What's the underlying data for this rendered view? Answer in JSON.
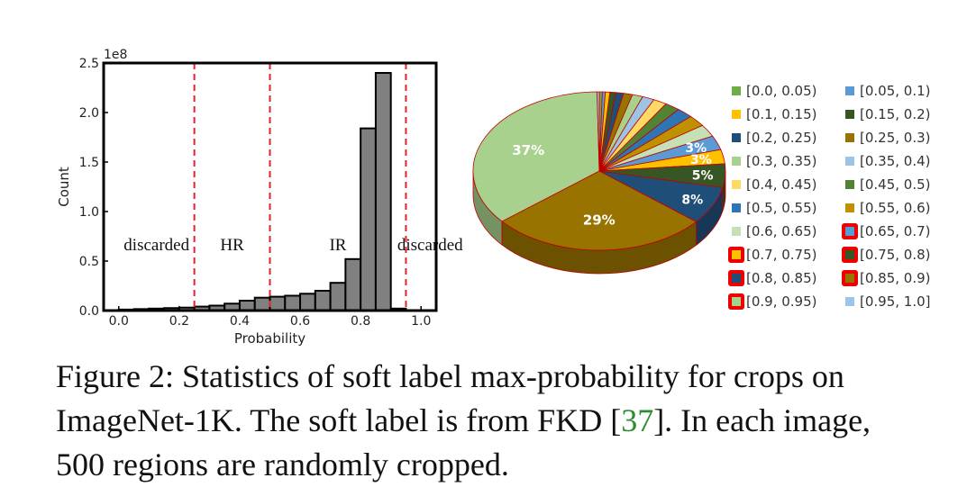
{
  "chart_data": [
    {
      "type": "bar",
      "xlabel": "Probability",
      "ylabel": "Count",
      "y_scale_label": "1e8",
      "xlim": [
        -0.05,
        1.05
      ],
      "ylim": [
        0,
        2.5
      ],
      "x_ticks": [
        "0.0",
        "0.2",
        "0.4",
        "0.6",
        "0.8",
        "1.0"
      ],
      "y_ticks": [
        "0.0",
        "0.5",
        "1.0",
        "1.5",
        "2.0",
        "2.5"
      ],
      "bin_width": 0.05,
      "bin_starts": [
        0.0,
        0.05,
        0.1,
        0.15,
        0.2,
        0.25,
        0.3,
        0.35,
        0.4,
        0.45,
        0.5,
        0.55,
        0.6,
        0.65,
        0.7,
        0.75,
        0.8,
        0.85,
        0.9,
        0.95
      ],
      "values": [
        0.01,
        0.015,
        0.02,
        0.025,
        0.03,
        0.04,
        0.05,
        0.07,
        0.1,
        0.13,
        0.14,
        0.15,
        0.17,
        0.2,
        0.28,
        0.52,
        1.84,
        2.4,
        0.02,
        0.0
      ],
      "bar_color": "#808080",
      "threshold_lines": [
        0.25,
        0.5,
        0.95
      ],
      "threshold_color": "#e8222a",
      "region_labels": [
        {
          "text": "discarded",
          "x": 0.125
        },
        {
          "text": "HR",
          "x": 0.375
        },
        {
          "text": "IR",
          "x": 0.725
        },
        {
          "text": "discarded",
          "x": 1.03
        }
      ],
      "grid": false
    },
    {
      "type": "pie",
      "style": "3d",
      "labels": [
        "[0.0, 0.05)",
        "[0.05, 0.1)",
        "[0.1, 0.15)",
        "[0.15, 0.2)",
        "[0.2, 0.25)",
        "[0.25, 0.3)",
        "[0.3, 0.35)",
        "[0.35, 0.4)",
        "[0.4, 0.45)",
        "[0.45, 0.5)",
        "[0.5, 0.55)",
        "[0.55, 0.6)",
        "[0.6, 0.65)",
        "[0.65, 0.7)",
        "[0.7, 0.75)",
        "[0.75, 0.8)",
        "[0.8, 0.85)",
        "[0.85, 0.9)",
        "[0.9, 0.95)",
        "[0.95, 1.0]"
      ],
      "colors": [
        "#70ad47",
        "#5b9bd5",
        "#ffc000",
        "#375623",
        "#1f4e79",
        "#997300",
        "#a9d18e",
        "#9dc3e6",
        "#ffd966",
        "#548235",
        "#2e75b6",
        "#bf9000",
        "#c5e0b4",
        "#5b9bd5",
        "#ffc000",
        "#375623",
        "#1f4e79",
        "#997300",
        "#a9d18e",
        "#9dc3e6"
      ],
      "boxed_legend": [
        false,
        false,
        false,
        false,
        false,
        false,
        false,
        false,
        false,
        false,
        false,
        false,
        false,
        true,
        true,
        true,
        true,
        true,
        true,
        false
      ],
      "pie_order": [
        0,
        1,
        2,
        3,
        4,
        5,
        6,
        7,
        8,
        9,
        10,
        11,
        12,
        13,
        14,
        15,
        16,
        17,
        18,
        19
      ],
      "slice_colors_in_order": [
        "#4472c4",
        "#ed7d31",
        "#a5a5a5",
        "#ffc000",
        "#5b9bd5",
        "#70ad47",
        "#264478",
        "#9e480e",
        "#636363",
        "#997300",
        "#255e91",
        "#43682b",
        "#9dc3e6",
        "#f4b183",
        "#ffd966",
        "#ffc000",
        "#375623",
        "#1f4e79",
        "#548235",
        "#a9d18e"
      ],
      "values": [
        0.4,
        0.4,
        0.6,
        0.8,
        1.0,
        1.2,
        1.4,
        1.6,
        1.8,
        2.0,
        2.2,
        2.4,
        2.6,
        3,
        3,
        5,
        8,
        29,
        37,
        0.3
      ],
      "data_labels": [
        "",
        "",
        "",
        "",
        "",
        "",
        "",
        "",
        "",
        "",
        "",
        "",
        "",
        "3%",
        "3%",
        "5%",
        "8%",
        "29%",
        "37%",
        ""
      ],
      "legend_position": "right"
    }
  ],
  "caption": {
    "prefix": "Figure 2: Statistics of soft label max-probability for crops on ImageNet-1K. The soft label is from FKD [",
    "ref": "37",
    "suffix": "]. In each image, 500 regions are randomly cropped."
  }
}
